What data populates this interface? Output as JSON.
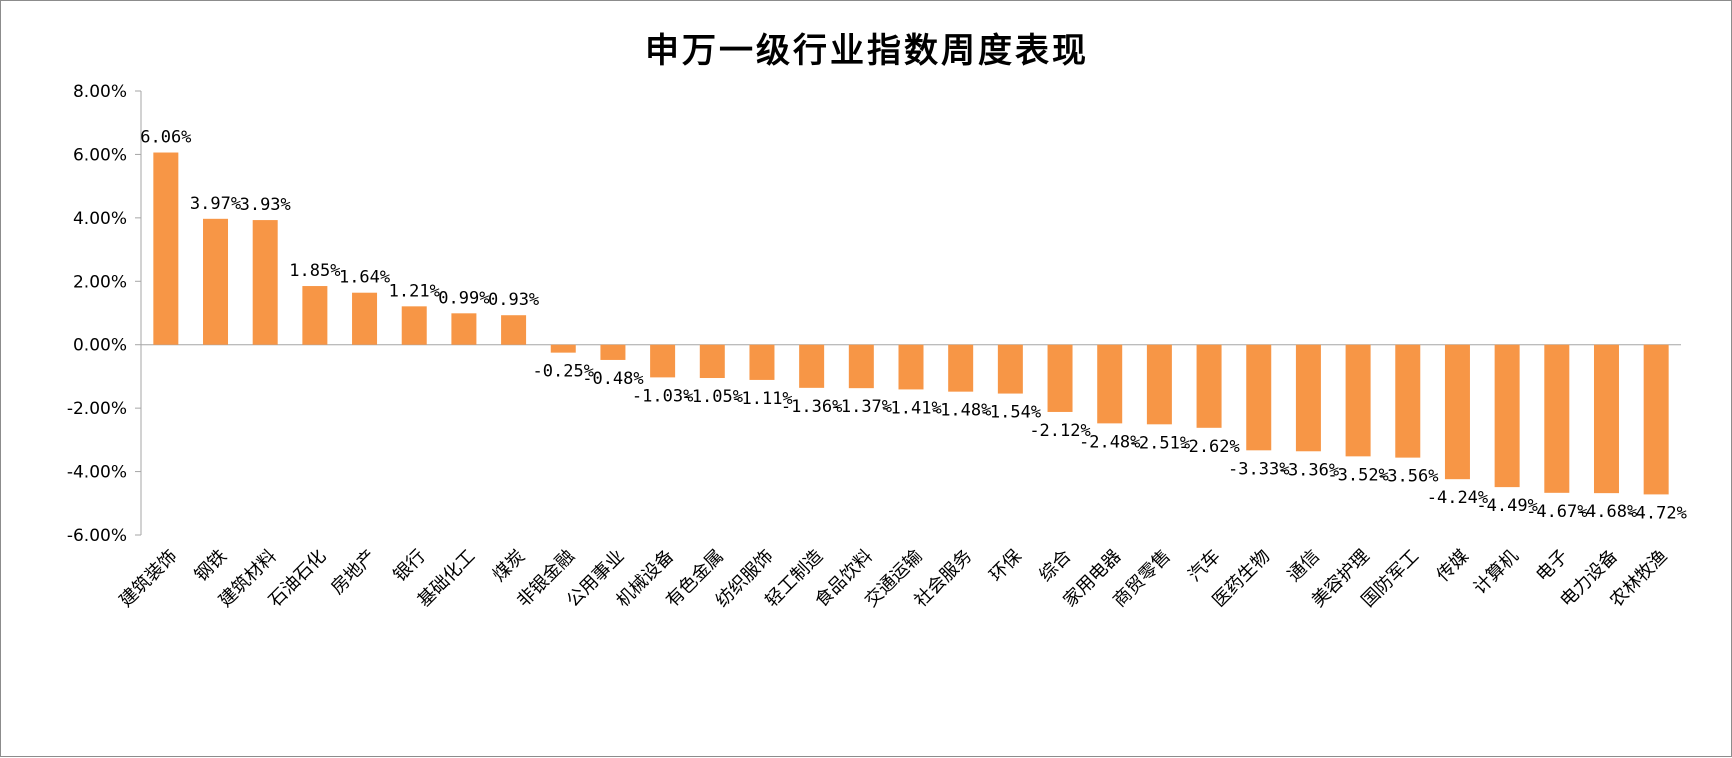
{
  "chart_data": {
    "type": "bar",
    "title": "申万一级行业指数周度表现",
    "xlabel": "",
    "ylabel": "",
    "ylim": [
      -6,
      8
    ],
    "yticks": [
      8,
      6,
      4,
      2,
      0,
      -2,
      -4,
      -6
    ],
    "ytick_labels": [
      "8.00%",
      "6.00%",
      "4.00%",
      "2.00%",
      "0.00%",
      "-2.00%",
      "-4.00%",
      "-6.00%"
    ],
    "categories": [
      "建筑装饰",
      "钢铁",
      "建筑材料",
      "石油石化",
      "房地产",
      "银行",
      "基础化工",
      "煤炭",
      "非银金融",
      "公用事业",
      "机械设备",
      "有色金属",
      "纺织服饰",
      "轻工制造",
      "食品饮料",
      "交通运输",
      "社会服务",
      "环保",
      "综合",
      "家用电器",
      "商贸零售",
      "汽车",
      "医药生物",
      "通信",
      "美容护理",
      "国防军工",
      "传媒",
      "计算机",
      "电子",
      "电力设备",
      "农林牧渔"
    ],
    "values": [
      6.06,
      3.97,
      3.93,
      1.85,
      1.64,
      1.21,
      0.99,
      0.93,
      -0.25,
      -0.48,
      -1.03,
      -1.05,
      -1.11,
      -1.36,
      -1.37,
      -1.41,
      -1.48,
      -1.54,
      -2.12,
      -2.48,
      -2.51,
      -2.62,
      -3.33,
      -3.36,
      -3.52,
      -3.56,
      -4.24,
      -4.49,
      -4.67,
      -4.68,
      -4.72
    ],
    "data_labels": [
      "6.06%",
      "3.97%",
      "3.93%",
      "1.85%",
      "1.64%",
      "1.21%",
      "0.99%",
      "0.93%",
      "-0.25%",
      "-0.48%",
      "-1.03%",
      "-1.05%",
      "-1.11%",
      "-1.36%",
      "-1.37%",
      "-1.41%",
      "-1.48%",
      "-1.54%",
      "-2.12%",
      "-2.48%",
      "-2.51%",
      "-2.62%",
      "-3.33%",
      "-3.36%",
      "-3.52%",
      "-3.56%",
      "-4.24%",
      "-4.49%",
      "-4.67%",
      "-4.68%",
      "-4.72%"
    ],
    "bar_color": "#F79646",
    "axis_color": "#A6A6A6",
    "grid": false,
    "legend": "none"
  }
}
